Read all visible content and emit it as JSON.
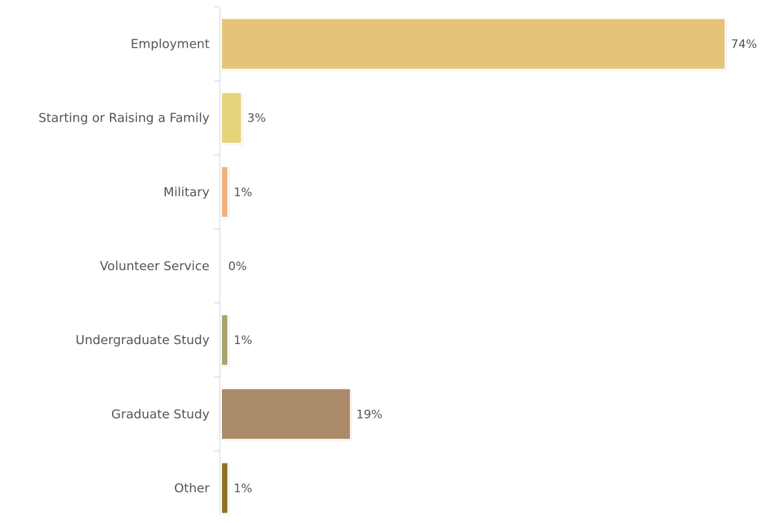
{
  "chart_data": {
    "type": "bar",
    "orientation": "horizontal",
    "title": "",
    "xlabel": "",
    "ylabel": "",
    "categories": [
      "Employment",
      "Starting or Raising a Family",
      "Military",
      "Volunteer Service",
      "Undergraduate Study",
      "Graduate Study",
      "Other"
    ],
    "values": [
      74,
      3,
      1,
      0,
      1,
      19,
      1
    ],
    "value_labels": [
      "74%",
      "3%",
      "1%",
      "0%",
      "1%",
      "19%",
      "1%"
    ],
    "unit": "%",
    "colors": [
      "#e5c47a",
      "#e6d47a",
      "#f0b07c",
      "#cccccc",
      "#a9a46b",
      "#ab8a6a",
      "#8f7028"
    ],
    "xlim": [
      0,
      74
    ],
    "grid": false,
    "legend": "none"
  }
}
